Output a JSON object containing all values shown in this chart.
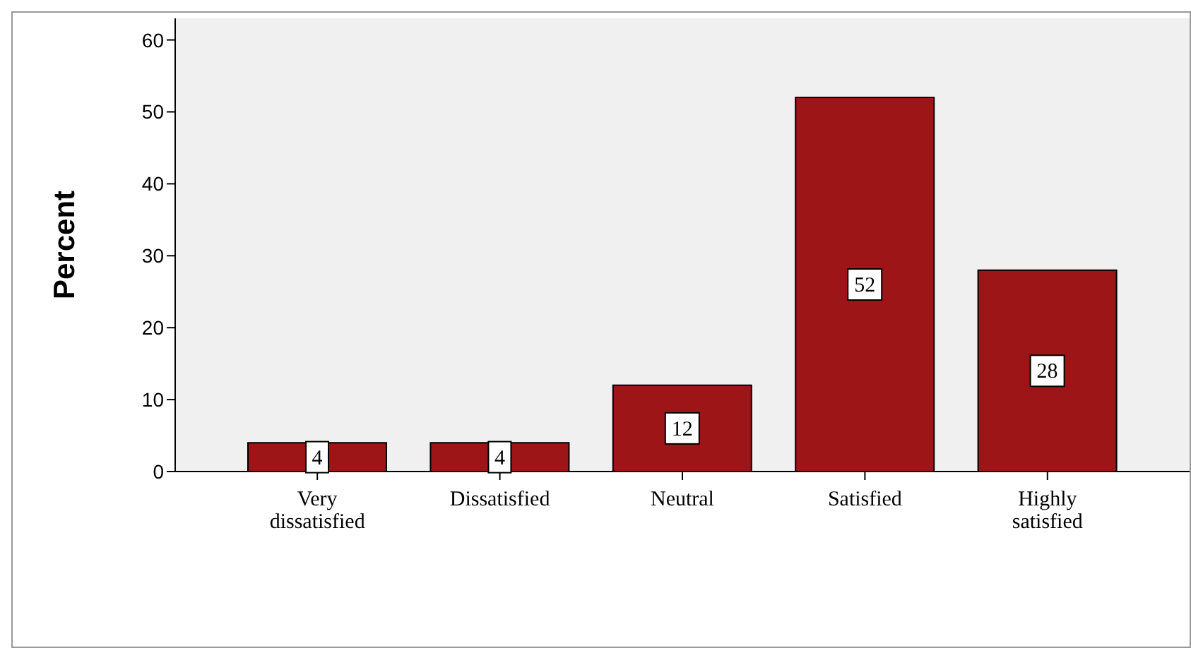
{
  "chart_data": {
    "type": "bar",
    "ylabel": "Percent",
    "categories": [
      "Very dissatisfied",
      "Dissatisfied",
      "Neutral",
      "Satisfied",
      "Highly satisfied"
    ],
    "values": [
      4,
      4,
      12,
      52,
      28
    ],
    "color": "#9e1518",
    "ylim": [
      0,
      63
    ],
    "yticks": [
      0,
      10,
      20,
      30,
      40,
      50,
      60
    ],
    "data_labels": true
  }
}
